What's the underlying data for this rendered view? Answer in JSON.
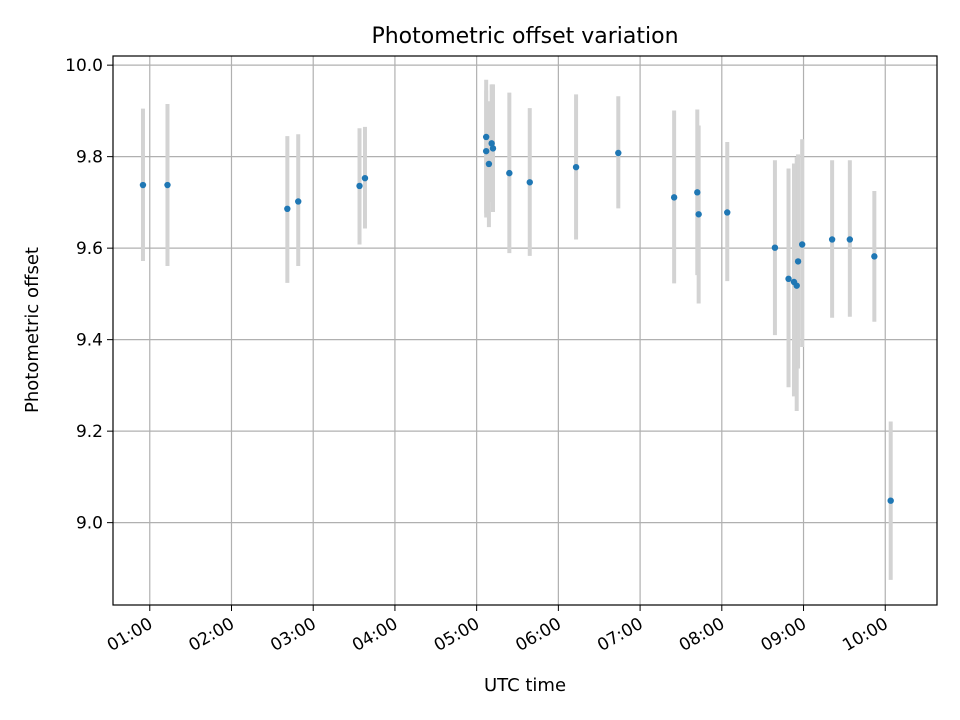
{
  "chart_data": {
    "type": "scatter",
    "title": "Photometric offset variation",
    "xlabel": "UTC time",
    "ylabel": "Photometric offset",
    "x_unit": "UTC hours",
    "xlim": [
      "00:33",
      "10:38"
    ],
    "ylim": [
      8.82,
      10.02
    ],
    "x_ticks": [
      "01:00",
      "02:00",
      "03:00",
      "04:00",
      "05:00",
      "06:00",
      "07:00",
      "08:00",
      "09:00",
      "10:00"
    ],
    "y_ticks": [
      "9.0",
      "9.2",
      "9.4",
      "9.6",
      "9.8",
      "10.0"
    ],
    "grid": true,
    "legend": "none",
    "colors": {
      "marker": "#1f77b4",
      "errorbar": "#d3d3d3",
      "grid": "#b0b0b0"
    },
    "series": [
      {
        "points": [
          {
            "x": "00:55",
            "y": 9.738,
            "err_low": 9.572,
            "err_high": 9.905
          },
          {
            "x": "01:13",
            "y": 9.738,
            "err_low": 9.561,
            "err_high": 9.915
          },
          {
            "x": "02:41",
            "y": 9.686,
            "err_low": 9.524,
            "err_high": 9.845
          },
          {
            "x": "02:49",
            "y": 9.702,
            "err_low": 9.561,
            "err_high": 9.849
          },
          {
            "x": "03:34",
            "y": 9.736,
            "err_low": 9.608,
            "err_high": 9.862
          },
          {
            "x": "03:38",
            "y": 9.753,
            "err_low": 9.643,
            "err_high": 9.865
          },
          {
            "x": "05:07",
            "y": 9.843,
            "err_low": 9.667,
            "err_high": 9.968
          },
          {
            "x": "05:07",
            "y": 9.812,
            "err_low": 9.676,
            "err_high": 9.945
          },
          {
            "x": "05:09",
            "y": 9.784,
            "err_low": 9.646,
            "err_high": 9.921
          },
          {
            "x": "05:11",
            "y": 9.829,
            "err_low": 9.701,
            "err_high": 9.958
          },
          {
            "x": "05:12",
            "y": 9.818,
            "err_low": 9.679,
            "err_high": 9.958
          },
          {
            "x": "05:24",
            "y": 9.764,
            "err_low": 9.589,
            "err_high": 9.94
          },
          {
            "x": "05:39",
            "y": 9.744,
            "err_low": 9.583,
            "err_high": 9.906
          },
          {
            "x": "06:13",
            "y": 9.777,
            "err_low": 9.619,
            "err_high": 9.936
          },
          {
            "x": "06:44",
            "y": 9.808,
            "err_low": 9.687,
            "err_high": 9.932
          },
          {
            "x": "07:25",
            "y": 9.711,
            "err_low": 9.523,
            "err_high": 9.901
          },
          {
            "x": "07:42",
            "y": 9.722,
            "err_low": 9.541,
            "err_high": 9.903
          },
          {
            "x": "07:43",
            "y": 9.674,
            "err_low": 9.479,
            "err_high": 9.868
          },
          {
            "x": "08:04",
            "y": 9.678,
            "err_low": 9.528,
            "err_high": 9.832
          },
          {
            "x": "08:39",
            "y": 9.601,
            "err_low": 9.41,
            "err_high": 9.792
          },
          {
            "x": "08:49",
            "y": 9.533,
            "err_low": 9.296,
            "err_high": 9.774
          },
          {
            "x": "08:53",
            "y": 9.526,
            "err_low": 9.276,
            "err_high": 9.785
          },
          {
            "x": "08:55",
            "y": 9.518,
            "err_low": 9.244,
            "err_high": 9.799
          },
          {
            "x": "08:56",
            "y": 9.571,
            "err_low": 9.337,
            "err_high": 9.805
          },
          {
            "x": "08:59",
            "y": 9.608,
            "err_low": 9.384,
            "err_high": 9.838
          },
          {
            "x": "09:21",
            "y": 9.619,
            "err_low": 9.448,
            "err_high": 9.792
          },
          {
            "x": "09:34",
            "y": 9.619,
            "err_low": 9.45,
            "err_high": 9.792
          },
          {
            "x": "09:52",
            "y": 9.582,
            "err_low": 9.439,
            "err_high": 9.725
          },
          {
            "x": "10:04",
            "y": 9.048,
            "err_low": 8.875,
            "err_high": 9.221
          }
        ]
      }
    ]
  }
}
